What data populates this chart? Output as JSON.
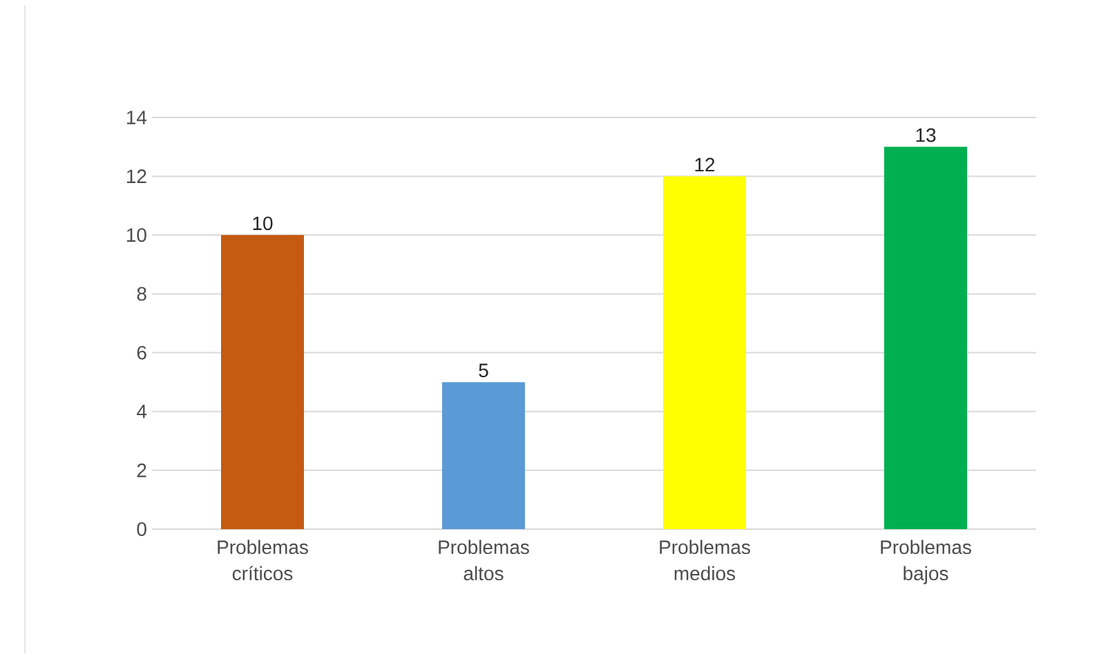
{
  "chart_data": {
    "type": "bar",
    "categories": [
      "Problemas críticos",
      "Problemas altos",
      "Problemas medios",
      "Problemas bajos"
    ],
    "values": [
      10,
      5,
      12,
      13
    ],
    "colors": [
      "#c55a11",
      "#5b9bd5",
      "#ffff00",
      "#00b050"
    ],
    "ylim": [
      0,
      14
    ],
    "yticks": [
      0,
      2,
      4,
      6,
      8,
      10,
      12,
      14
    ],
    "grid": "y",
    "data_labels": true
  }
}
